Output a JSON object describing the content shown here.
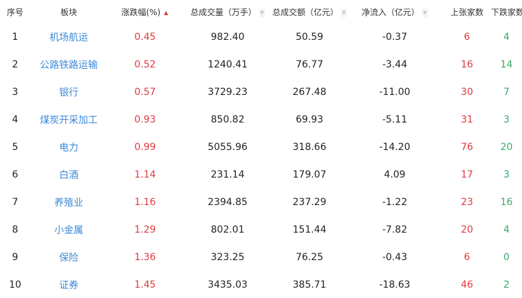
{
  "headers": [
    "序号",
    "板块",
    "涨跌幅(%)",
    "总成交量（万手）",
    "总成交额（亿元）",
    "净流入（亿元）",
    "上张家数",
    "下跌家数"
  ],
  "sort_icons": {
    "change": "sort-asc-icon",
    "others": "sort-desc-icon"
  },
  "colors": {
    "up": "#e0393e",
    "down": "#3aaa6a",
    "link": "#3a8ad8"
  },
  "rows": [
    {
      "no": "1",
      "name": "机场航运",
      "change": "0.45",
      "volume": "982.40",
      "amount": "50.59",
      "inflow": "-0.37",
      "up": "6",
      "down": "4"
    },
    {
      "no": "2",
      "name": "公路铁路运输",
      "change": "0.52",
      "volume": "1240.41",
      "amount": "76.77",
      "inflow": "-3.44",
      "up": "16",
      "down": "14"
    },
    {
      "no": "3",
      "name": "银行",
      "change": "0.57",
      "volume": "3729.23",
      "amount": "267.48",
      "inflow": "-11.00",
      "up": "30",
      "down": "7"
    },
    {
      "no": "4",
      "name": "煤炭开采加工",
      "change": "0.93",
      "volume": "850.82",
      "amount": "69.93",
      "inflow": "-5.11",
      "up": "31",
      "down": "3"
    },
    {
      "no": "5",
      "name": "电力",
      "change": "0.99",
      "volume": "5055.96",
      "amount": "318.66",
      "inflow": "-14.20",
      "up": "76",
      "down": "20"
    },
    {
      "no": "6",
      "name": "白酒",
      "change": "1.14",
      "volume": "231.14",
      "amount": "179.07",
      "inflow": "4.09",
      "up": "17",
      "down": "3"
    },
    {
      "no": "7",
      "name": "养殖业",
      "change": "1.16",
      "volume": "2394.85",
      "amount": "237.29",
      "inflow": "-1.22",
      "up": "23",
      "down": "16"
    },
    {
      "no": "8",
      "name": "小金属",
      "change": "1.29",
      "volume": "802.01",
      "amount": "151.44",
      "inflow": "-7.82",
      "up": "20",
      "down": "4"
    },
    {
      "no": "9",
      "name": "保险",
      "change": "1.36",
      "volume": "323.25",
      "amount": "76.25",
      "inflow": "-0.43",
      "up": "6",
      "down": "0"
    },
    {
      "no": "10",
      "name": "证券",
      "change": "1.45",
      "volume": "3435.03",
      "amount": "385.71",
      "inflow": "-18.63",
      "up": "46",
      "down": "2"
    }
  ]
}
